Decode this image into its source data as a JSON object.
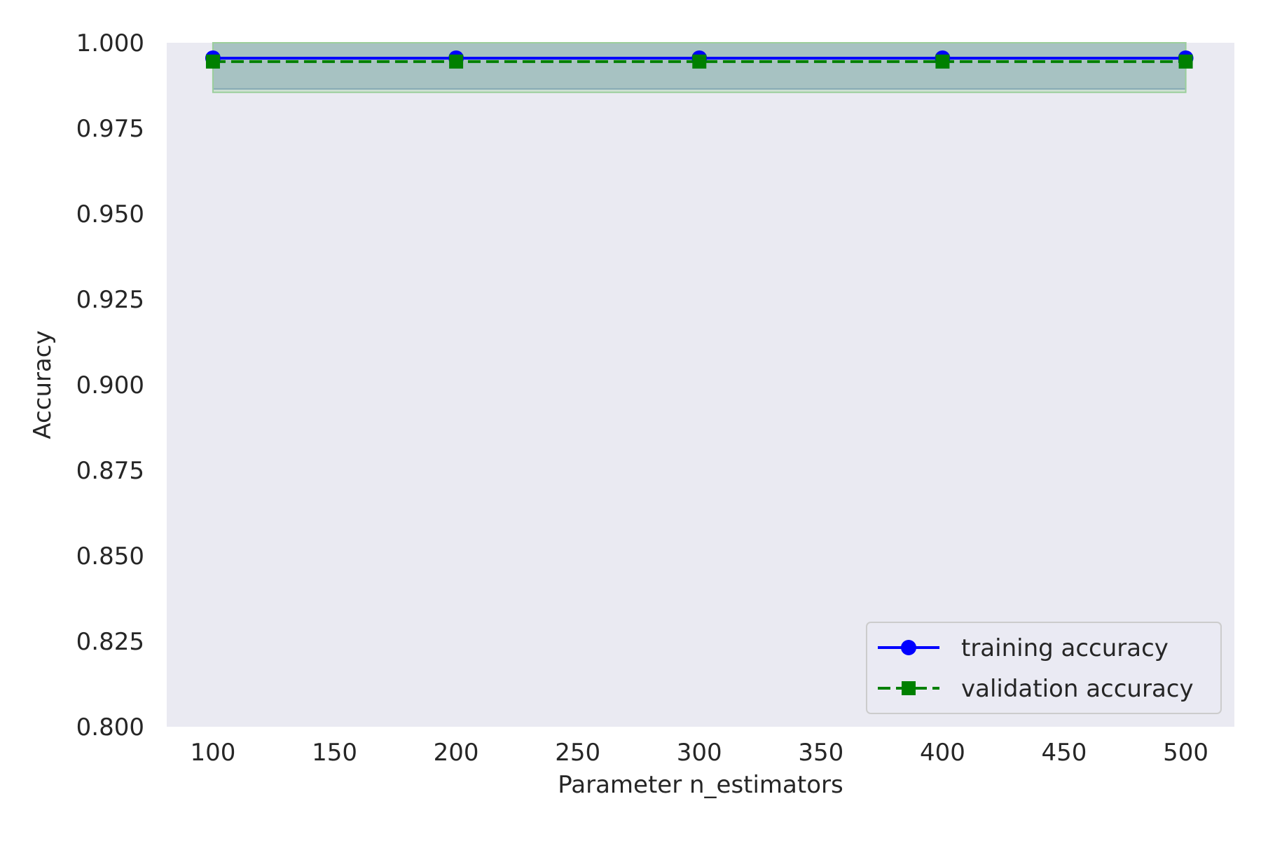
{
  "chart_data": {
    "type": "line",
    "title": "",
    "xlabel": "Parameter n_estimators",
    "ylabel": "Accuracy",
    "xlim": [
      81,
      520
    ],
    "ylim": [
      0.8,
      1.0
    ],
    "x_ticks": [
      100,
      150,
      200,
      250,
      300,
      350,
      400,
      450,
      500
    ],
    "y_ticks": [
      "0.800",
      "0.825",
      "0.850",
      "0.875",
      "0.900",
      "0.925",
      "0.950",
      "0.975",
      "1.000"
    ],
    "grid": false,
    "legend_position": "lower-right",
    "x": [
      100,
      200,
      300,
      400,
      500
    ],
    "series": [
      {
        "name": "training accuracy",
        "values": [
          0.9955,
          0.9955,
          0.9955,
          0.9955,
          0.9955
        ],
        "band_lower": [
          0.9865,
          0.9865,
          0.9865,
          0.9865,
          0.9865
        ],
        "band_upper": [
          1.0045,
          1.0045,
          1.0045,
          1.0045,
          1.0045
        ],
        "color": "#0000ff",
        "band_color": "#7b96c2",
        "marker": "circle",
        "linestyle": "solid"
      },
      {
        "name": "validation accuracy",
        "values": [
          0.9945,
          0.9945,
          0.9945,
          0.9945,
          0.9945
        ],
        "band_lower": [
          0.9855,
          0.9855,
          0.9855,
          0.9855,
          0.9855
        ],
        "band_upper": [
          1.0035,
          1.0035,
          1.0035,
          1.0035,
          1.0035
        ],
        "color": "#008000",
        "band_color": "#9ccf9c",
        "marker": "square",
        "linestyle": "dashed"
      }
    ],
    "plot_background": "#eaeaf2"
  }
}
